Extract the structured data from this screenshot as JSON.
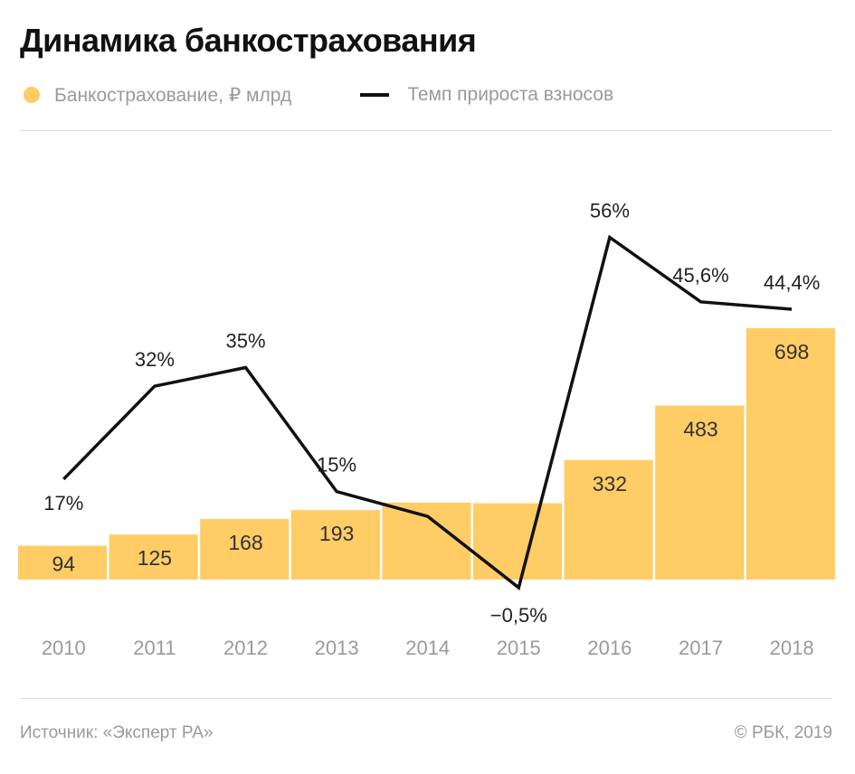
{
  "title": "Динамика банкострахования",
  "legend": {
    "bars": "Банкострахование, ₽ млрд",
    "line": "Темп прироста взносов"
  },
  "footer": {
    "source": "Источник: «Эксперт РА»",
    "copyright": "© РБК, 2019"
  },
  "colors": {
    "bar": "#ffcc66",
    "line": "#111111"
  },
  "chart_data": {
    "type": "bar",
    "categories": [
      "2010",
      "2011",
      "2012",
      "2013",
      "2014",
      "2015",
      "2016",
      "2017",
      "2018"
    ],
    "series": [
      {
        "name": "Банкострахование, ₽ млрд",
        "type": "bar",
        "values": [
          94,
          125,
          168,
          193,
          214,
          212,
          332,
          483,
          698
        ],
        "labels": [
          "94",
          "125",
          "168",
          "193",
          "",
          "",
          "332",
          "483",
          "698"
        ]
      },
      {
        "name": "Темп прироста взносов",
        "type": "line",
        "values": [
          17,
          32,
          35,
          15,
          11,
          -0.5,
          56,
          45.6,
          44.4
        ],
        "labels": [
          "17%",
          "32%",
          "35%",
          "15%",
          "",
          "−0,5%",
          "56%",
          "45,6%",
          "44,4%"
        ]
      }
    ]
  }
}
